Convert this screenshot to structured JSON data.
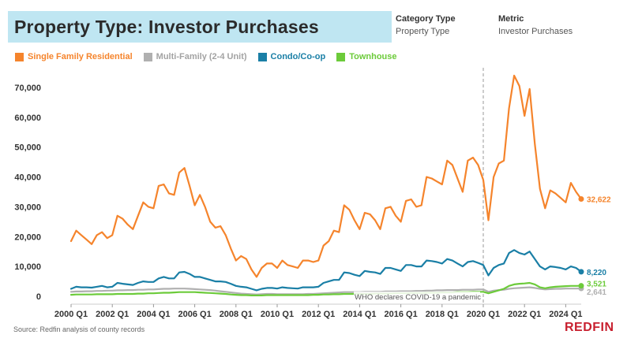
{
  "header": {
    "title": "Property Type: Investor Purchases",
    "filters": [
      {
        "label": "Category Type",
        "value": "Property Type"
      },
      {
        "label": "Metric",
        "value": "Investor Purchases"
      }
    ]
  },
  "source": "Source: Redfin analysis of county records",
  "brand": "REDFIN",
  "colors": {
    "sfr": "#f5842c",
    "multi": "#b0b0b0",
    "condo": "#1a7fa6",
    "townhouse": "#6ccb3a",
    "title_bg": "#bfe6f2",
    "brand": "#c8202f"
  },
  "chart_data": {
    "type": "line",
    "title": "Property Type: Investor Purchases",
    "xlabel": "",
    "ylabel": "",
    "ylim": [
      0,
      75000
    ],
    "yticks": [
      0,
      10000,
      20000,
      30000,
      40000,
      50000,
      60000,
      70000
    ],
    "ytick_labels": [
      "0",
      "10,000",
      "20,000",
      "30,000",
      "40,000",
      "50,000",
      "60,000",
      "70,000"
    ],
    "xticks": [
      "2000 Q1",
      "2002 Q1",
      "2004 Q1",
      "2006 Q1",
      "2008 Q1",
      "2010 Q1",
      "2012 Q1",
      "2014 Q1",
      "2016 Q1",
      "2018 Q1",
      "2020 Q1",
      "2022 Q1",
      "2024 Q1"
    ],
    "start_quarter": "2000 Q1",
    "annotation": {
      "quarter": "2020 Q1",
      "text": "WHO declares COVID-19 a pandemic"
    },
    "legend_position": "top-left",
    "series": [
      {
        "name": "Single Family Residential",
        "color": "#f5842c",
        "end_label": "32,622",
        "values": [
          18500,
          22000,
          20500,
          19000,
          17500,
          20500,
          21500,
          19500,
          20500,
          27000,
          26000,
          24000,
          22500,
          27000,
          31500,
          30000,
          29500,
          37000,
          37500,
          34500,
          34000,
          41500,
          43000,
          37000,
          30500,
          34000,
          30000,
          25000,
          23000,
          23500,
          20500,
          16000,
          12000,
          13500,
          12500,
          9000,
          6500,
          9500,
          11000,
          11000,
          9500,
          12000,
          10500,
          10000,
          9500,
          12000,
          12000,
          11500,
          12000,
          17000,
          18500,
          22000,
          21500,
          30500,
          29000,
          25500,
          22500,
          28000,
          27500,
          25500,
          22500,
          29500,
          30000,
          27000,
          25000,
          32000,
          32500,
          30000,
          30500,
          40000,
          39500,
          38500,
          37500,
          45500,
          44000,
          39500,
          35000,
          45500,
          46500,
          44000,
          39000,
          25500,
          40000,
          44500,
          45500,
          63000,
          74000,
          70500,
          60500,
          69500,
          51000,
          36000,
          29500,
          35500,
          34500,
          33000,
          31500,
          38000,
          35000,
          32622
        ]
      },
      {
        "name": "Multi-Family (2-4 Unit)",
        "color": "#b0b0b0",
        "end_label": "2,641",
        "values": [
          1500,
          1600,
          1600,
          1700,
          1700,
          1800,
          1800,
          1900,
          1900,
          2000,
          2000,
          2100,
          2100,
          2200,
          2200,
          2300,
          2300,
          2400,
          2500,
          2500,
          2600,
          2600,
          2600,
          2500,
          2400,
          2300,
          2200,
          2100,
          1900,
          1700,
          1500,
          1300,
          1100,
          900,
          800,
          700,
          600,
          700,
          800,
          800,
          700,
          700,
          700,
          700,
          700,
          700,
          800,
          800,
          900,
          1000,
          1100,
          1200,
          1300,
          1400,
          1400,
          1400,
          1400,
          1500,
          1500,
          1500,
          1500,
          1600,
          1600,
          1600,
          1700,
          1700,
          1700,
          1800,
          1800,
          1900,
          1900,
          2000,
          2000,
          2100,
          2100,
          2100,
          2200,
          2200,
          2200,
          2300,
          2300,
          1500,
          1900,
          2100,
          2200,
          2500,
          2700,
          2800,
          2900,
          3000,
          2800,
          2500,
          2300,
          2400,
          2500,
          2500,
          2600,
          2600,
          2600,
          2641
        ]
      },
      {
        "name": "Condo/Co-op",
        "color": "#1a7fa6",
        "end_label": "8,220",
        "values": [
          2500,
          3200,
          3000,
          3000,
          2900,
          3200,
          3500,
          3000,
          3200,
          4500,
          4200,
          4000,
          3800,
          4500,
          5000,
          4800,
          4800,
          6000,
          6500,
          6000,
          6000,
          8000,
          8200,
          7500,
          6500,
          6500,
          6000,
          5500,
          5000,
          5000,
          4800,
          4200,
          3500,
          3200,
          3000,
          2500,
          2000,
          2500,
          2800,
          2800,
          2600,
          3000,
          2800,
          2700,
          2600,
          3000,
          3000,
          3000,
          3200,
          4500,
          5000,
          5500,
          5500,
          8000,
          7800,
          7200,
          6800,
          8500,
          8200,
          8000,
          7500,
          9500,
          9500,
          9000,
          8500,
          10500,
          10500,
          10000,
          10000,
          12000,
          11800,
          11500,
          11000,
          12500,
          12000,
          11000,
          10000,
          11500,
          11800,
          11200,
          10500,
          7000,
          9500,
          10500,
          11000,
          14500,
          15500,
          14500,
          14000,
          15000,
          12500,
          10000,
          9000,
          10000,
          9800,
          9500,
          9000,
          10000,
          9500,
          8220
        ]
      },
      {
        "name": "Townhouse",
        "color": "#6ccb3a",
        "end_label": "3,521",
        "values": [
          500,
          600,
          600,
          600,
          600,
          700,
          700,
          700,
          700,
          800,
          800,
          800,
          800,
          900,
          900,
          1000,
          1000,
          1100,
          1200,
          1200,
          1300,
          1400,
          1400,
          1400,
          1400,
          1300,
          1200,
          1100,
          1000,
          900,
          800,
          600,
          500,
          400,
          400,
          300,
          300,
          300,
          400,
          400,
          400,
          400,
          400,
          400,
          400,
          400,
          400,
          500,
          500,
          600,
          600,
          700,
          700,
          800,
          800,
          800,
          800,
          800,
          800,
          900,
          900,
          900,
          900,
          1000,
          1000,
          1000,
          1100,
          1100,
          1100,
          1200,
          1200,
          1200,
          1300,
          1300,
          1300,
          1400,
          1400,
          1400,
          1500,
          1500,
          1500,
          1000,
          1500,
          2000,
          2500,
          3500,
          4000,
          4200,
          4300,
          4500,
          4000,
          3000,
          2700,
          3000,
          3200,
          3300,
          3400,
          3500,
          3500,
          3521
        ]
      }
    ]
  }
}
